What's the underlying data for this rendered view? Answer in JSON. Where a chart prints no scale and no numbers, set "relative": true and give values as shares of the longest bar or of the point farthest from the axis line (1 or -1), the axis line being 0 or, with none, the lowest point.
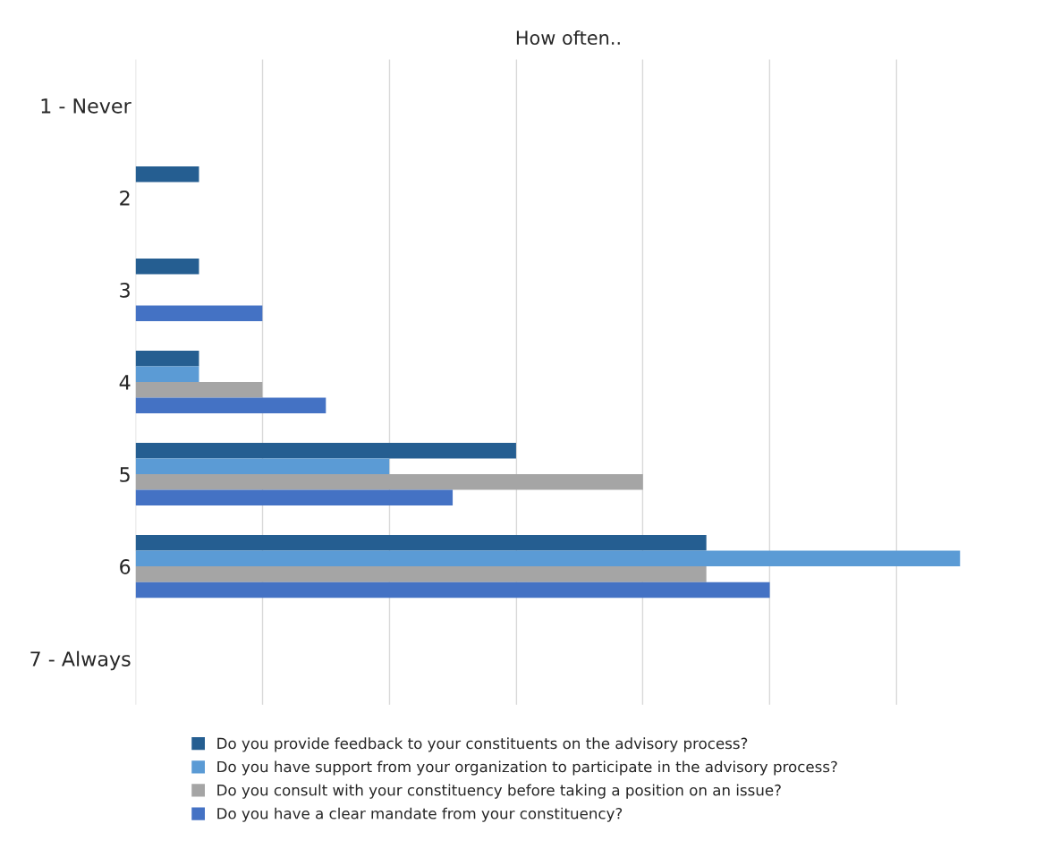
{
  "chart_data": {
    "type": "bar",
    "orientation": "horizontal",
    "relative": true,
    "title": "How often..",
    "categories": [
      "1 - Never",
      "2",
      "3",
      "4",
      "5",
      "6",
      "7 - Always"
    ],
    "series": [
      {
        "name": "Do you provide feedback to your constituents on the advisory process?",
        "color": "#255e91",
        "values": [
          null,
          0.0769,
          0.0769,
          0.0769,
          0.4615,
          0.6923,
          null
        ]
      },
      {
        "name": "Do you have support from your organization to participate in the advisory process?",
        "color": "#5b9bd5",
        "values": [
          null,
          null,
          null,
          0.0769,
          0.3077,
          1,
          null
        ]
      },
      {
        "name": "Do you consult with your constituency before taking a position on an issue?",
        "color": "#a5a5a5",
        "values": [
          null,
          null,
          null,
          0.1538,
          0.6154,
          0.6923,
          null
        ]
      },
      {
        "name": "Do you have a clear mandate from your constituency?",
        "color": "#4472c4",
        "values": [
          null,
          null,
          0.1538,
          0.2308,
          0.3846,
          0.7692,
          null
        ]
      }
    ],
    "grid": "x",
    "legend": "bottom"
  }
}
